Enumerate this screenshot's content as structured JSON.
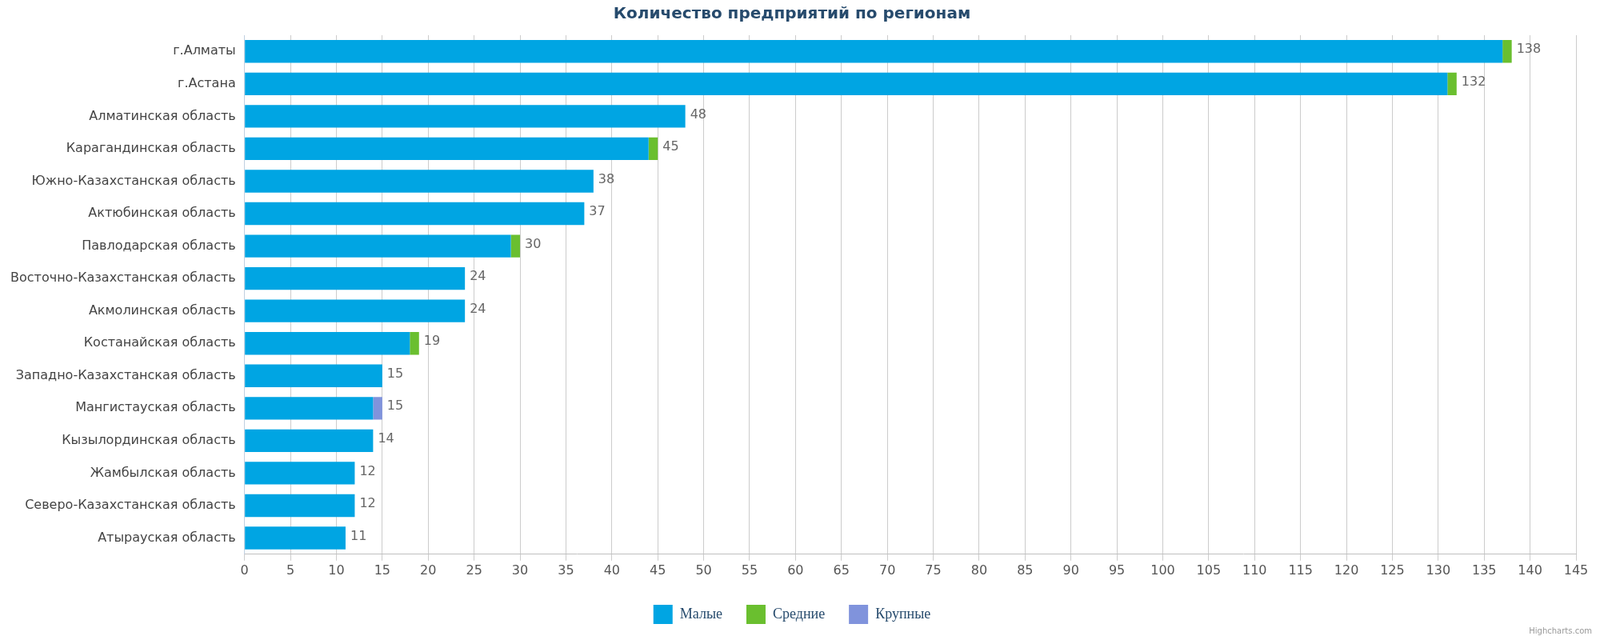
{
  "chart_data": {
    "type": "bar",
    "title": "Количество предприятий по регионам",
    "orientation": "horizontal",
    "stacked": true,
    "grid": true,
    "legend": "bottom",
    "categories": [
      "г.Алматы",
      "г.Астана",
      "Алматинская область",
      "Карагандинская область",
      "Южно-Казахстанская область",
      "Актюбинская область",
      "Павлодарская область",
      "Восточно-Казахстанская область",
      "Акмолинская область",
      "Костанайская область",
      "Западно-Казахстанская область",
      "Мангистауская область",
      "Кызылординская область",
      "Жамбылская область",
      "Северо-Казахстанская область",
      "Атырауская область"
    ],
    "series": [
      {
        "name": "Малые",
        "color": "#00a5e3",
        "values": [
          137,
          131,
          48,
          44,
          38,
          37,
          29,
          24,
          24,
          18,
          15,
          14,
          14,
          12,
          12,
          11
        ]
      },
      {
        "name": "Средние",
        "color": "#6abf2f",
        "values": [
          1,
          1,
          0,
          1,
          0,
          0,
          1,
          0,
          0,
          1,
          0,
          0,
          0,
          0,
          0,
          0
        ]
      },
      {
        "name": "Крупные",
        "color": "#8093dc",
        "values": [
          0,
          0,
          0,
          0,
          0,
          0,
          0,
          0,
          0,
          0,
          0,
          1,
          0,
          0,
          0,
          0
        ]
      }
    ],
    "totals": [
      138,
      132,
      48,
      45,
      38,
      37,
      30,
      24,
      24,
      19,
      15,
      15,
      14,
      12,
      12,
      11
    ],
    "xlim": [
      0,
      145
    ],
    "xticks": [
      0,
      5,
      10,
      15,
      20,
      25,
      30,
      35,
      40,
      45,
      50,
      55,
      60,
      65,
      70,
      75,
      80,
      85,
      90,
      95,
      100,
      105,
      110,
      115,
      120,
      125,
      130,
      135,
      140,
      145
    ],
    "annotations": [
      "Highcharts.com"
    ]
  }
}
